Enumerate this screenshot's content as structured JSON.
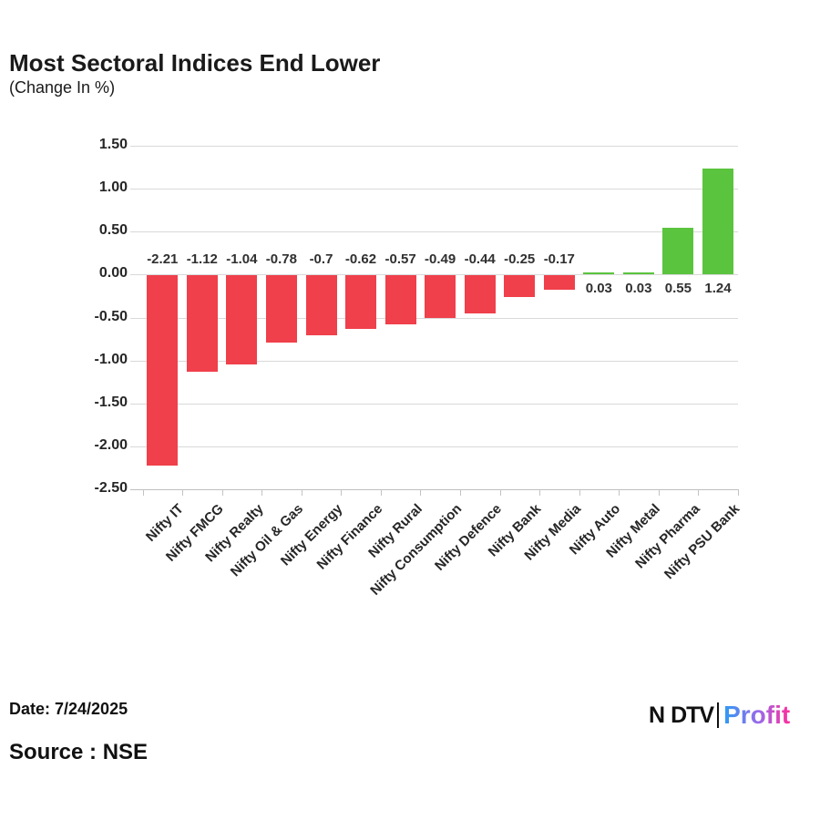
{
  "header": {
    "title": "Most Sectoral Indices End Lower",
    "subtitle": "(Change In %)"
  },
  "footer": {
    "date_label": "Date: 7/24/2025",
    "source_label": "Source : NSE"
  },
  "logo": {
    "ndtv_text": "N",
    "ndtv_text2": "DTV",
    "profit_text": "Profit",
    "dot_color": "#e23744",
    "profit_gradient": [
      "#2e9bf5",
      "#9d68e8",
      "#ff2d9c"
    ]
  },
  "chart_data": {
    "type": "bar",
    "title": "Most Sectoral Indices End Lower",
    "subtitle": "(Change In %)",
    "xlabel": "",
    "ylabel": "Change In %",
    "categories": [
      "Nifty IT",
      "Nifty FMCG",
      "Nifty Realty",
      "Nifty Oil & Gas",
      "Nifty Energy",
      "Nifty Finance",
      "Nifty Rural",
      "Nifty Consumption",
      "Nifty Defence",
      "Nifty Bank",
      "Nifty Media",
      "Nifty Auto",
      "Nifty Metal",
      "Nifty Pharma",
      "Nifty PSU Bank"
    ],
    "values": [
      -2.21,
      -1.12,
      -1.04,
      -0.78,
      -0.7,
      -0.62,
      -0.57,
      -0.49,
      -0.44,
      -0.25,
      -0.17,
      0.03,
      0.03,
      0.55,
      1.24
    ],
    "value_labels": [
      "-2.21",
      "-1.12",
      "-1.04",
      "-0.78",
      "-0.7",
      "-0.62",
      "-0.57",
      "-0.49",
      "-0.44",
      "-0.25",
      "-0.17",
      "0.03",
      "0.03",
      "0.55",
      "1.24"
    ],
    "ylim": [
      -2.5,
      1.5
    ],
    "ytick_values": [
      1.5,
      1.0,
      0.5,
      0.0,
      -0.5,
      -1.0,
      -1.5,
      -2.0,
      -2.5
    ],
    "ytick_labels": [
      "1.50",
      "1.00",
      "0.50",
      "0.00",
      "-0.50",
      "-1.00",
      "-1.50",
      "-2.00",
      "-2.50"
    ],
    "grid": true,
    "legend": false,
    "colors": {
      "positive_bar": "#5bc43e",
      "negative_bar": "#ef404b",
      "gridline": "#d9d9d9",
      "axisline": "#bfbfbf"
    }
  }
}
